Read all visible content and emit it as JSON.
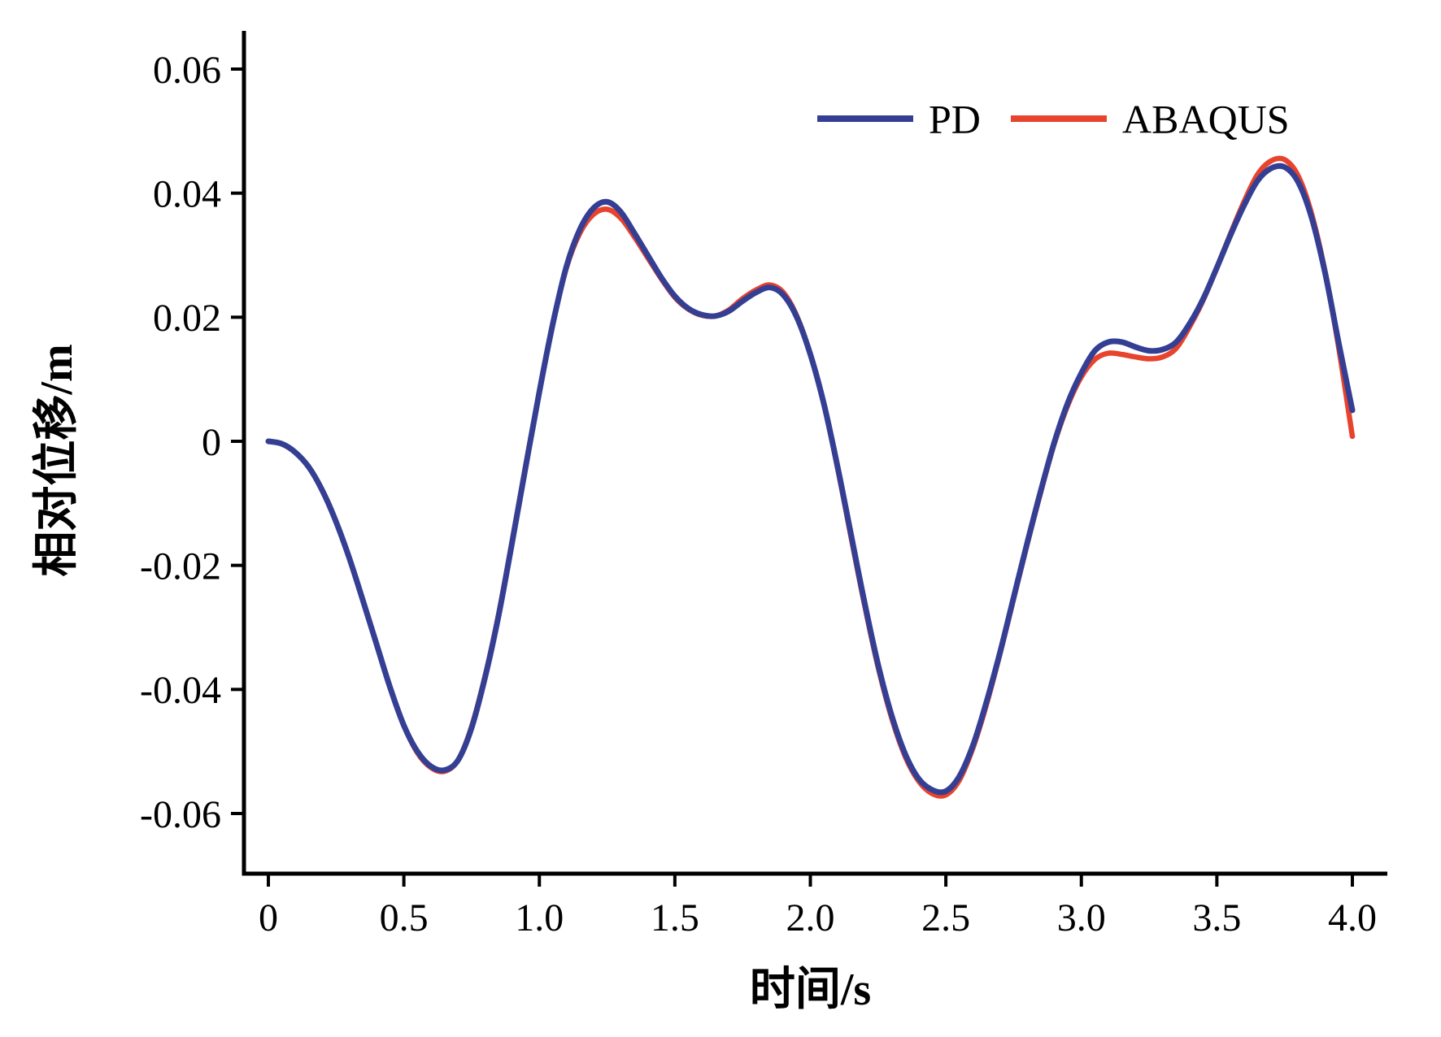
{
  "chart_data": {
    "type": "line",
    "title": "",
    "xlabel": "时间/s",
    "ylabel": "相对位移/m",
    "xlim": [
      0,
      4.0
    ],
    "ylim": [
      -0.06,
      0.06
    ],
    "grid": false,
    "legend_position": "top-right-inside",
    "axis_color": "#000000",
    "x_ticks": {
      "values": [
        0,
        0.5,
        1.0,
        1.5,
        2.0,
        2.5,
        3.0,
        3.5,
        4.0
      ],
      "labels": [
        "0",
        "0.5",
        "1.0",
        "1.5",
        "2.0",
        "2.5",
        "3.0",
        "3.5",
        "4.0"
      ]
    },
    "y_ticks": {
      "values": [
        0.06,
        0.04,
        0.02,
        0,
        -0.02,
        -0.04,
        -0.06
      ],
      "labels": [
        "0.06",
        "0.04",
        "0.02",
        "0",
        "-0.02",
        "-0.04",
        "-0.06"
      ]
    },
    "series": [
      {
        "name": "PD",
        "color": "#343f94",
        "points": [
          [
            0.0,
            0.0
          ],
          [
            0.05,
            -0.0004
          ],
          [
            0.1,
            -0.0018
          ],
          [
            0.15,
            -0.0042
          ],
          [
            0.2,
            -0.008
          ],
          [
            0.25,
            -0.013
          ],
          [
            0.3,
            -0.019
          ],
          [
            0.35,
            -0.0258
          ],
          [
            0.4,
            -0.0328
          ],
          [
            0.45,
            -0.0398
          ],
          [
            0.5,
            -0.0458
          ],
          [
            0.55,
            -0.05
          ],
          [
            0.6,
            -0.0524
          ],
          [
            0.65,
            -0.053
          ],
          [
            0.7,
            -0.0514
          ],
          [
            0.75,
            -0.0462
          ],
          [
            0.8,
            -0.038
          ],
          [
            0.85,
            -0.028
          ],
          [
            0.9,
            -0.0162
          ],
          [
            0.95,
            -0.004
          ],
          [
            1.0,
            0.008
          ],
          [
            1.05,
            0.019
          ],
          [
            1.1,
            0.0282
          ],
          [
            1.15,
            0.0342
          ],
          [
            1.2,
            0.0376
          ],
          [
            1.25,
            0.0386
          ],
          [
            1.3,
            0.037
          ],
          [
            1.35,
            0.0336
          ],
          [
            1.4,
            0.03
          ],
          [
            1.45,
            0.0264
          ],
          [
            1.5,
            0.0234
          ],
          [
            1.55,
            0.0214
          ],
          [
            1.6,
            0.0204
          ],
          [
            1.65,
            0.0202
          ],
          [
            1.7,
            0.021
          ],
          [
            1.75,
            0.0226
          ],
          [
            1.8,
            0.024
          ],
          [
            1.85,
            0.0248
          ],
          [
            1.9,
            0.0236
          ],
          [
            1.95,
            0.02
          ],
          [
            2.0,
            0.014
          ],
          [
            2.05,
            0.006
          ],
          [
            2.1,
            -0.004
          ],
          [
            2.15,
            -0.015
          ],
          [
            2.2,
            -0.026
          ],
          [
            2.25,
            -0.036
          ],
          [
            2.3,
            -0.0442
          ],
          [
            2.35,
            -0.0504
          ],
          [
            2.4,
            -0.0544
          ],
          [
            2.45,
            -0.0562
          ],
          [
            2.5,
            -0.0564
          ],
          [
            2.55,
            -0.054
          ],
          [
            2.6,
            -0.049
          ],
          [
            2.65,
            -0.042
          ],
          [
            2.7,
            -0.034
          ],
          [
            2.75,
            -0.0252
          ],
          [
            2.8,
            -0.0164
          ],
          [
            2.85,
            -0.008
          ],
          [
            2.9,
            -0.0002
          ],
          [
            2.95,
            0.0062
          ],
          [
            3.0,
            0.011
          ],
          [
            3.05,
            0.0146
          ],
          [
            3.1,
            0.016
          ],
          [
            3.15,
            0.016
          ],
          [
            3.2,
            0.0152
          ],
          [
            3.25,
            0.0146
          ],
          [
            3.3,
            0.0148
          ],
          [
            3.35,
            0.016
          ],
          [
            3.4,
            0.019
          ],
          [
            3.45,
            0.023
          ],
          [
            3.5,
            0.028
          ],
          [
            3.55,
            0.0332
          ],
          [
            3.6,
            0.038
          ],
          [
            3.65,
            0.042
          ],
          [
            3.7,
            0.044
          ],
          [
            3.75,
            0.0442
          ],
          [
            3.8,
            0.0418
          ],
          [
            3.85,
            0.036
          ],
          [
            3.9,
            0.027
          ],
          [
            3.95,
            0.0158
          ],
          [
            4.0,
            0.005
          ]
        ]
      },
      {
        "name": "ABAQUS",
        "color": "#e8432c",
        "points": [
          [
            0.0,
            0.0
          ],
          [
            0.05,
            -0.0004
          ],
          [
            0.1,
            -0.0018
          ],
          [
            0.15,
            -0.0042
          ],
          [
            0.2,
            -0.008
          ],
          [
            0.25,
            -0.013
          ],
          [
            0.3,
            -0.019
          ],
          [
            0.35,
            -0.0258
          ],
          [
            0.4,
            -0.0328
          ],
          [
            0.45,
            -0.0398
          ],
          [
            0.5,
            -0.0458
          ],
          [
            0.55,
            -0.0502
          ],
          [
            0.6,
            -0.0526
          ],
          [
            0.65,
            -0.0532
          ],
          [
            0.7,
            -0.0514
          ],
          [
            0.75,
            -0.046
          ],
          [
            0.8,
            -0.0378
          ],
          [
            0.85,
            -0.0278
          ],
          [
            0.9,
            -0.016
          ],
          [
            0.95,
            -0.0038
          ],
          [
            1.0,
            0.008
          ],
          [
            1.05,
            0.019
          ],
          [
            1.1,
            0.028
          ],
          [
            1.15,
            0.0336
          ],
          [
            1.2,
            0.0366
          ],
          [
            1.25,
            0.0374
          ],
          [
            1.3,
            0.036
          ],
          [
            1.35,
            0.033
          ],
          [
            1.4,
            0.0296
          ],
          [
            1.45,
            0.0262
          ],
          [
            1.5,
            0.0232
          ],
          [
            1.55,
            0.0213
          ],
          [
            1.6,
            0.0203
          ],
          [
            1.65,
            0.0202
          ],
          [
            1.7,
            0.0212
          ],
          [
            1.75,
            0.023
          ],
          [
            1.8,
            0.0244
          ],
          [
            1.85,
            0.0252
          ],
          [
            1.9,
            0.024
          ],
          [
            1.95,
            0.0202
          ],
          [
            2.0,
            0.014
          ],
          [
            2.05,
            0.006
          ],
          [
            2.1,
            -0.0042
          ],
          [
            2.15,
            -0.0154
          ],
          [
            2.2,
            -0.0264
          ],
          [
            2.25,
            -0.0364
          ],
          [
            2.3,
            -0.0446
          ],
          [
            2.35,
            -0.0508
          ],
          [
            2.4,
            -0.0548
          ],
          [
            2.45,
            -0.0568
          ],
          [
            2.5,
            -0.057
          ],
          [
            2.55,
            -0.0546
          ],
          [
            2.6,
            -0.0494
          ],
          [
            2.65,
            -0.0424
          ],
          [
            2.7,
            -0.0342
          ],
          [
            2.75,
            -0.0254
          ],
          [
            2.8,
            -0.0166
          ],
          [
            2.85,
            -0.0082
          ],
          [
            2.9,
            -0.0004
          ],
          [
            2.95,
            0.0058
          ],
          [
            3.0,
            0.0104
          ],
          [
            3.05,
            0.0132
          ],
          [
            3.1,
            0.0142
          ],
          [
            3.15,
            0.014
          ],
          [
            3.2,
            0.0136
          ],
          [
            3.25,
            0.0133
          ],
          [
            3.3,
            0.0136
          ],
          [
            3.35,
            0.015
          ],
          [
            3.4,
            0.0185
          ],
          [
            3.45,
            0.0228
          ],
          [
            3.5,
            0.028
          ],
          [
            3.55,
            0.0334
          ],
          [
            3.6,
            0.0386
          ],
          [
            3.65,
            0.043
          ],
          [
            3.7,
            0.0452
          ],
          [
            3.75,
            0.0454
          ],
          [
            3.8,
            0.0428
          ],
          [
            3.85,
            0.0366
          ],
          [
            3.9,
            0.0272
          ],
          [
            3.95,
            0.015
          ],
          [
            4.0,
            0.0008
          ]
        ]
      }
    ]
  }
}
